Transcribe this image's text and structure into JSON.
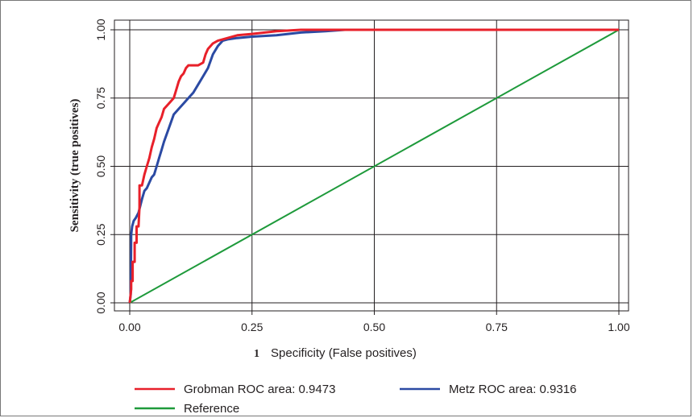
{
  "chart_data": {
    "type": "line",
    "title": "",
    "figure_number": "1",
    "xlabel": "Specificity (False positives)",
    "ylabel": "Sensitivity (true positives)",
    "xlim": [
      0,
      1
    ],
    "ylim": [
      0,
      1
    ],
    "x_ticks": [
      "0.00",
      "0.25",
      "0.50",
      "0.75",
      "1.00"
    ],
    "y_ticks": [
      "0.00",
      "0.25",
      "0.50",
      "0.75",
      "1.00"
    ],
    "grid": true,
    "legend_position": "bottom",
    "series": [
      {
        "name": "Grobman ROC area: 0.9473",
        "color": "#e8202a",
        "points": [
          [
            0,
            0
          ],
          [
            0.003,
            0.05
          ],
          [
            0.003,
            0.08
          ],
          [
            0.006,
            0.08
          ],
          [
            0.006,
            0.15
          ],
          [
            0.01,
            0.15
          ],
          [
            0.01,
            0.22
          ],
          [
            0.014,
            0.22
          ],
          [
            0.014,
            0.28
          ],
          [
            0.018,
            0.28
          ],
          [
            0.02,
            0.35
          ],
          [
            0.02,
            0.43
          ],
          [
            0.025,
            0.43
          ],
          [
            0.03,
            0.47
          ],
          [
            0.035,
            0.5
          ],
          [
            0.04,
            0.53
          ],
          [
            0.045,
            0.57
          ],
          [
            0.05,
            0.6
          ],
          [
            0.055,
            0.64
          ],
          [
            0.06,
            0.66
          ],
          [
            0.065,
            0.68
          ],
          [
            0.07,
            0.71
          ],
          [
            0.08,
            0.73
          ],
          [
            0.09,
            0.75
          ],
          [
            0.095,
            0.78
          ],
          [
            0.1,
            0.81
          ],
          [
            0.105,
            0.83
          ],
          [
            0.11,
            0.84
          ],
          [
            0.115,
            0.86
          ],
          [
            0.12,
            0.87
          ],
          [
            0.14,
            0.87
          ],
          [
            0.15,
            0.88
          ],
          [
            0.155,
            0.91
          ],
          [
            0.16,
            0.93
          ],
          [
            0.17,
            0.95
          ],
          [
            0.18,
            0.96
          ],
          [
            0.2,
            0.97
          ],
          [
            0.22,
            0.98
          ],
          [
            0.25,
            0.985
          ],
          [
            0.3,
            0.995
          ],
          [
            0.35,
            1.0
          ],
          [
            1.0,
            1.0
          ]
        ]
      },
      {
        "name": "Metz ROC area: 0.9316",
        "color": "#2b4aa3",
        "points": [
          [
            0,
            0
          ],
          [
            0.002,
            0.03
          ],
          [
            0.003,
            0.25
          ],
          [
            0.005,
            0.28
          ],
          [
            0.008,
            0.3
          ],
          [
            0.012,
            0.31
          ],
          [
            0.018,
            0.33
          ],
          [
            0.025,
            0.38
          ],
          [
            0.03,
            0.41
          ],
          [
            0.035,
            0.42
          ],
          [
            0.04,
            0.44
          ],
          [
            0.045,
            0.46
          ],
          [
            0.05,
            0.47
          ],
          [
            0.055,
            0.5
          ],
          [
            0.06,
            0.53
          ],
          [
            0.065,
            0.56
          ],
          [
            0.07,
            0.59
          ],
          [
            0.08,
            0.64
          ],
          [
            0.09,
            0.69
          ],
          [
            0.1,
            0.71
          ],
          [
            0.11,
            0.73
          ],
          [
            0.12,
            0.75
          ],
          [
            0.13,
            0.77
          ],
          [
            0.14,
            0.8
          ],
          [
            0.15,
            0.83
          ],
          [
            0.16,
            0.86
          ],
          [
            0.17,
            0.91
          ],
          [
            0.18,
            0.94
          ],
          [
            0.19,
            0.96
          ],
          [
            0.2,
            0.965
          ],
          [
            0.22,
            0.97
          ],
          [
            0.25,
            0.975
          ],
          [
            0.3,
            0.98
          ],
          [
            0.35,
            0.99
          ],
          [
            0.4,
            0.995
          ],
          [
            0.44,
            1.0
          ],
          [
            1.0,
            1.0
          ]
        ]
      },
      {
        "name": "Reference",
        "color": "#1e9a3b",
        "points": [
          [
            0,
            0
          ],
          [
            1,
            1
          ]
        ]
      }
    ]
  }
}
